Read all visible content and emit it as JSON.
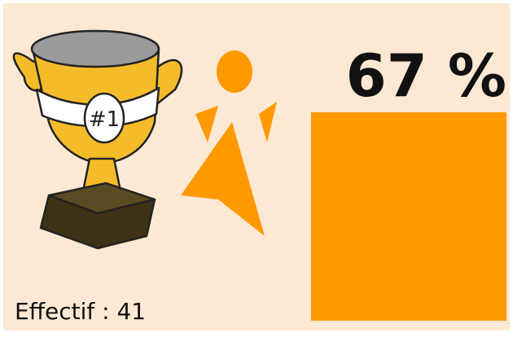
{
  "percent_label": "67 %",
  "count_label": "Effectif : 41"
}
